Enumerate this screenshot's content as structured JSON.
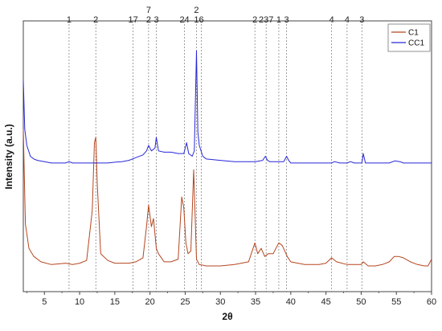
{
  "chart_data": {
    "type": "line",
    "title": "",
    "xlabel": "2θ",
    "ylabel": "Intensity (a.u.)",
    "xlim": [
      2,
      60
    ],
    "x_ticks": [
      5,
      10,
      15,
      20,
      25,
      30,
      35,
      40,
      45,
      50,
      55,
      60
    ],
    "x_tick_labels": [
      "5",
      "10",
      "15",
      "20",
      "25",
      "30",
      "35",
      "40",
      "45",
      "50",
      "55",
      "60"
    ],
    "ylim": [
      0,
      100
    ],
    "y_ticks_shown": false,
    "grid": false,
    "legend": "top-right",
    "series": [
      {
        "name": "C1",
        "color": "#b5461f",
        "x": [
          2,
          2.3,
          2.8,
          3.5,
          4.5,
          6,
          8,
          9,
          10,
          11,
          11.8,
          12.1,
          12.3,
          12.5,
          13,
          14,
          15,
          16,
          17,
          18,
          19,
          19.5,
          19.8,
          20.2,
          20.5,
          20.9,
          21.2,
          22,
          23,
          24,
          24.5,
          24.8,
          25.1,
          25.4,
          25.8,
          26.2,
          26.6,
          27,
          28,
          30,
          32,
          34,
          34.9,
          35.3,
          35.8,
          36.3,
          36.8,
          37.5,
          38.3,
          38.8,
          39.5,
          40,
          41,
          42,
          43,
          44,
          45,
          45.8,
          46.5,
          48,
          50,
          50.3,
          51,
          52,
          53,
          54,
          54.7,
          55.3,
          56,
          57,
          58,
          59,
          59.5,
          60
        ],
        "values": [
          60,
          25,
          16,
          13,
          11,
          10,
          10.5,
          10,
          10.5,
          11.5,
          30,
          55,
          57,
          40,
          14,
          11.5,
          10.5,
          10.5,
          10.5,
          11,
          12.5,
          24,
          32,
          24,
          27,
          16,
          14,
          11,
          11,
          12,
          35,
          31,
          18,
          14,
          15,
          45,
          12,
          10,
          9.5,
          9.5,
          10,
          11,
          18,
          14,
          16,
          13,
          14,
          14,
          18,
          17,
          13,
          11,
          10.5,
          10,
          10,
          10,
          10.5,
          12.5,
          11,
          10,
          10,
          11,
          9.5,
          9.5,
          10,
          11,
          13,
          13,
          12.5,
          11,
          10,
          9.5,
          9.5,
          12
        ]
      },
      {
        "name": "CC1",
        "color": "#2727d8",
        "x": [
          2,
          2.2,
          2.5,
          3,
          3.5,
          4,
          5,
          6,
          7,
          8,
          8.5,
          9,
          10,
          11,
          12,
          13,
          14,
          15,
          16,
          17,
          18,
          19,
          19.5,
          19.8,
          20.2,
          20.7,
          20.9,
          21.2,
          22,
          23,
          24,
          24.8,
          25.2,
          25.5,
          26,
          26.3,
          26.6,
          26.8,
          27,
          27.5,
          28,
          30,
          32,
          34,
          35,
          36,
          36.4,
          36.7,
          37,
          38,
          39,
          39.4,
          39.7,
          40,
          42,
          44,
          45.8,
          46.2,
          47,
          48,
          48.5,
          49,
          50.1,
          50.3,
          50.6,
          52,
          54,
          54.8,
          55.5,
          56,
          58,
          60
        ],
        "values": [
          78,
          60,
          54,
          50,
          49,
          48.5,
          48,
          47.5,
          47.5,
          47.5,
          48,
          47.5,
          47.5,
          47.5,
          47.5,
          47.5,
          47.5,
          47.8,
          48,
          48.5,
          49.5,
          50.5,
          52,
          54,
          52,
          53,
          57,
          52,
          51.5,
          51.5,
          51,
          51,
          55,
          51,
          50,
          52,
          89,
          59,
          54,
          50,
          49,
          48.5,
          48,
          48,
          48,
          48.5,
          50,
          48.5,
          48,
          48,
          48,
          50,
          48.5,
          47.5,
          47.5,
          47.5,
          47.5,
          48,
          47.5,
          47.5,
          48,
          47.5,
          47.5,
          51,
          47.5,
          47.5,
          47.5,
          48.3,
          48,
          47.5,
          47.5,
          47.5
        ]
      }
    ],
    "annotations": [
      {
        "x": 8.5,
        "label": "1"
      },
      {
        "x": 12.3,
        "label": "2"
      },
      {
        "x": 17.6,
        "label": "17"
      },
      {
        "x": 19.8,
        "label": "7\n2"
      },
      {
        "x": 20.9,
        "label": "3"
      },
      {
        "x": 24.9,
        "label": "24"
      },
      {
        "x": 26.6,
        "label": "2\n1"
      },
      {
        "x": 27.3,
        "label": "6"
      },
      {
        "x": 34.9,
        "label": "2"
      },
      {
        "x": 36.5,
        "label": "237"
      },
      {
        "x": 38.3,
        "label": "1"
      },
      {
        "x": 39.4,
        "label": "3"
      },
      {
        "x": 45.8,
        "label": "4"
      },
      {
        "x": 48.0,
        "label": "4"
      },
      {
        "x": 50.1,
        "label": "3"
      }
    ]
  }
}
